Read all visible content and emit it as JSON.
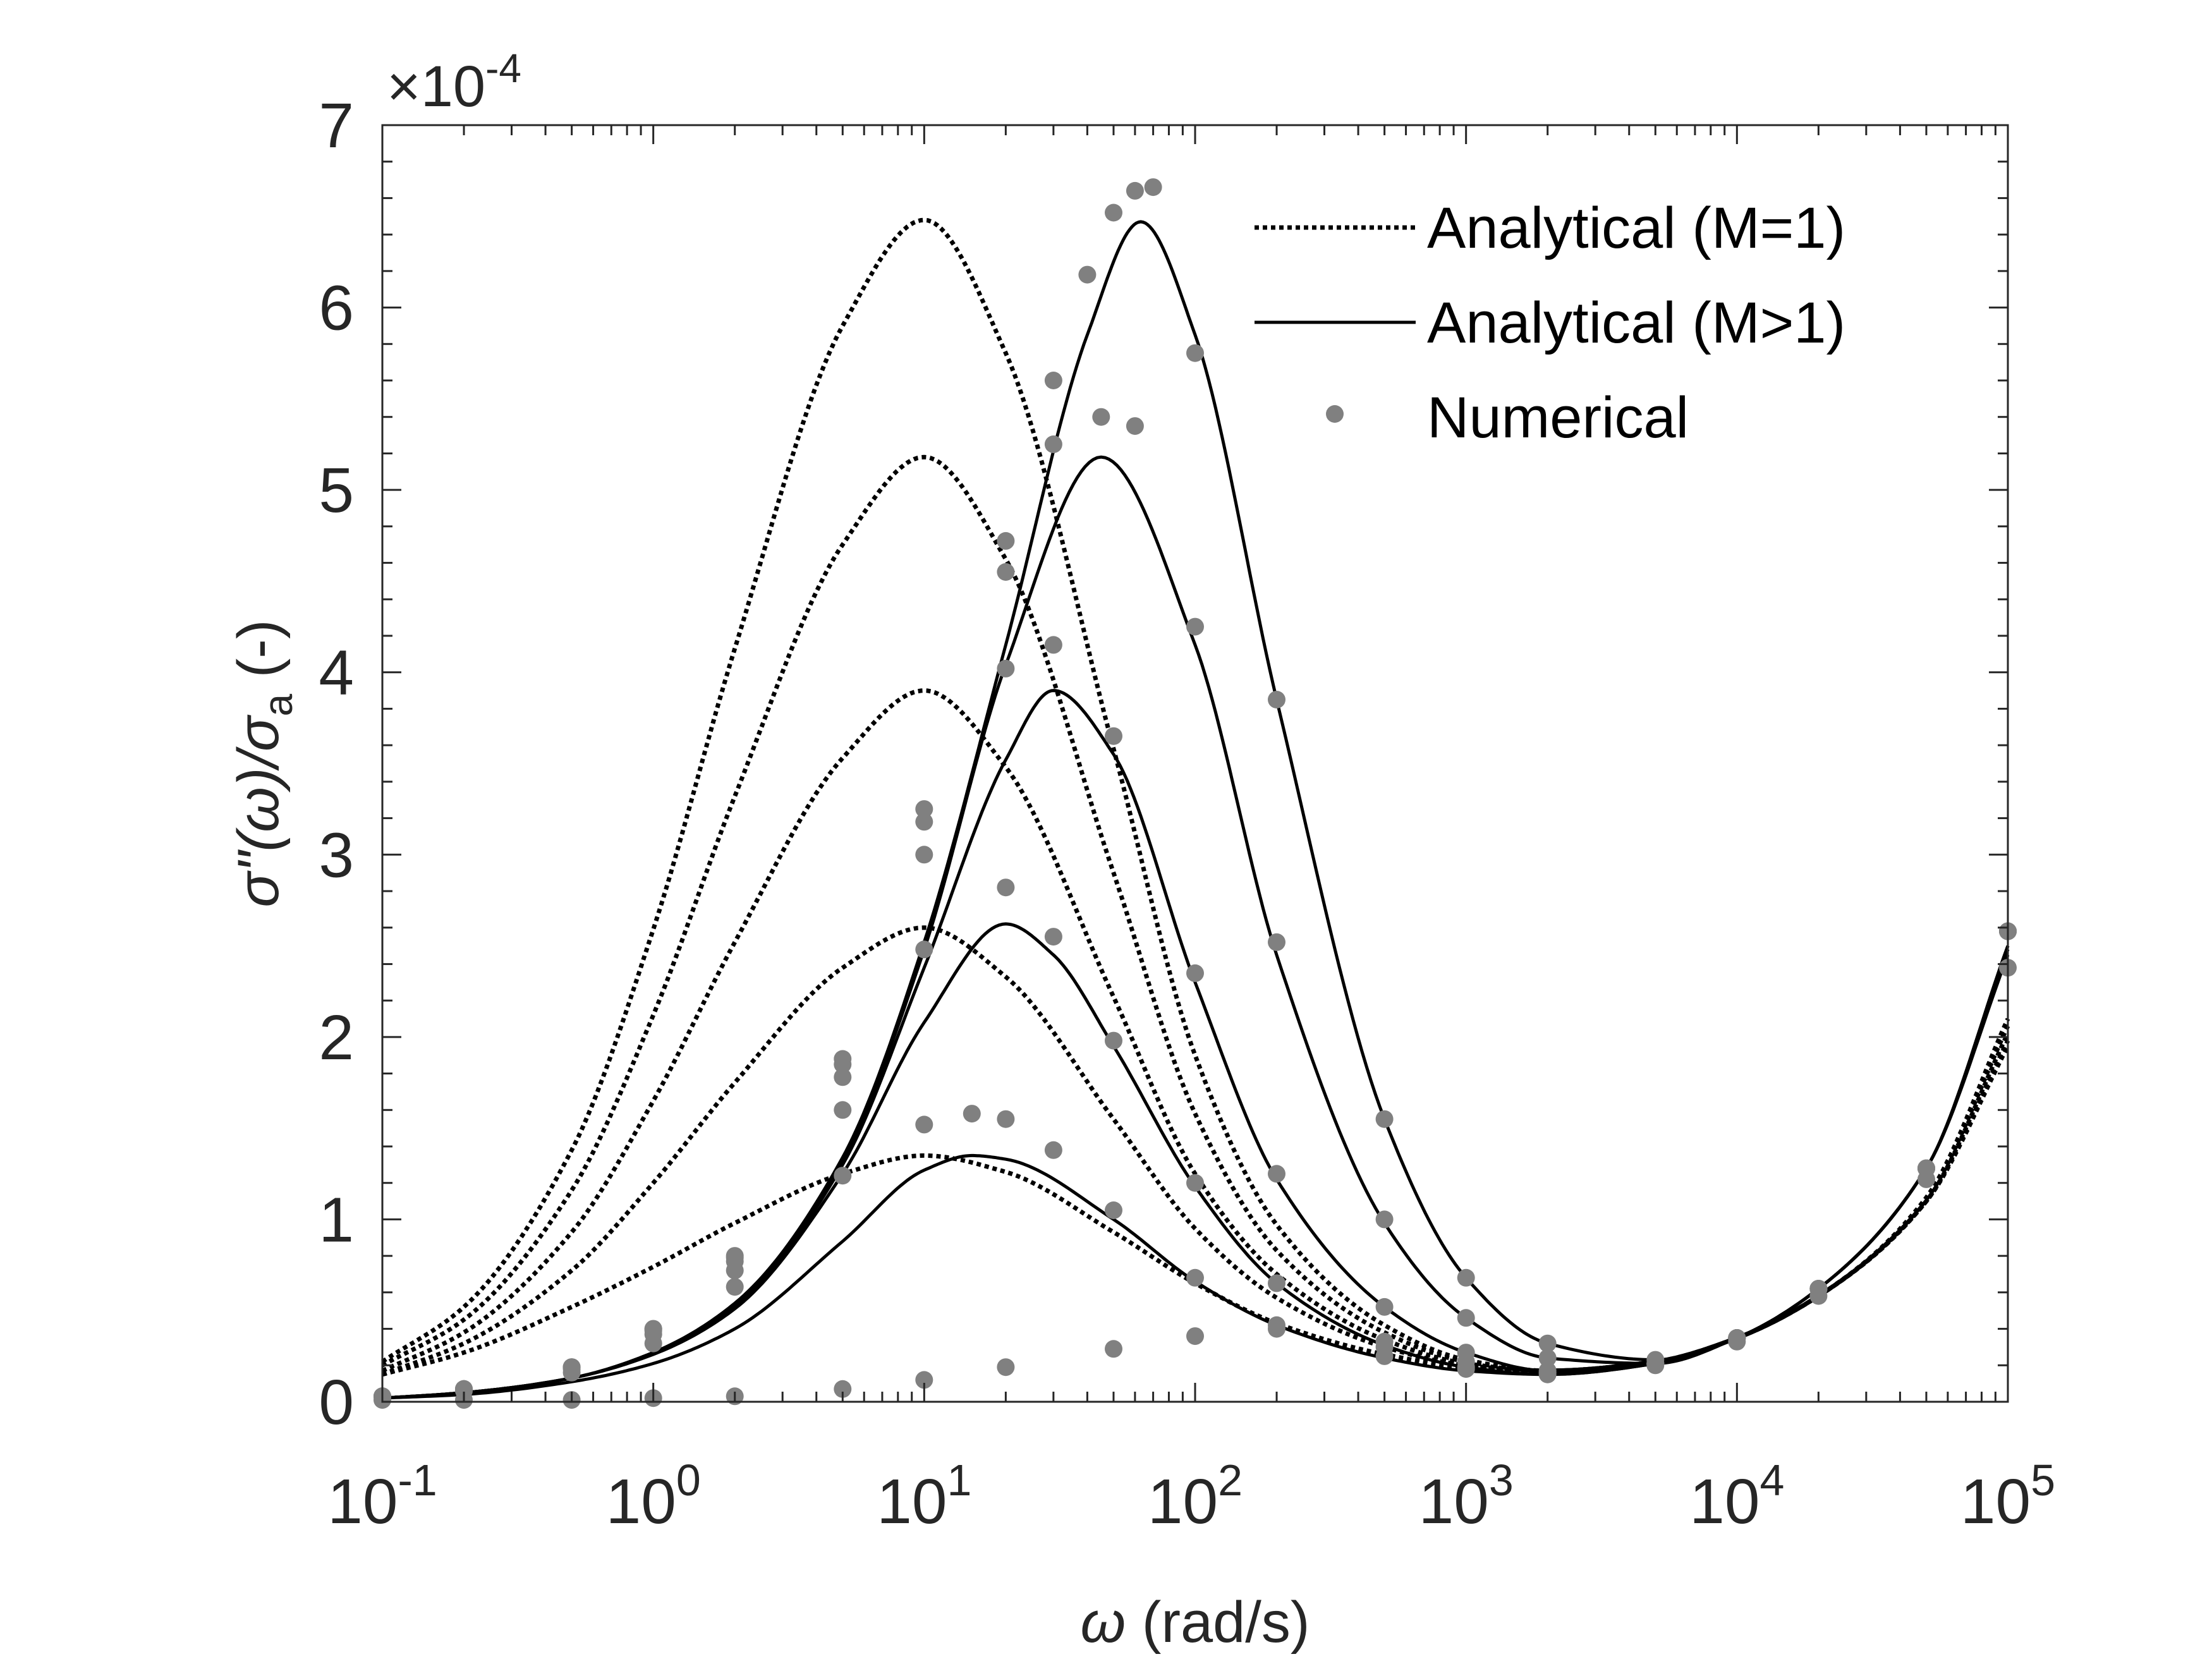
{
  "chart_data": {
    "type": "line",
    "xlabel_symbol": "ω",
    "xlabel_unit": "(rad/s)",
    "ylabel_main": "σ\"(ω)/σ",
    "ylabel_sub": "a",
    "ylabel_unit": "(-)",
    "x_scale": "log",
    "xlim": [
      0.1,
      100000
    ],
    "ylim": [
      0,
      0.0007
    ],
    "y_exponent_prefix": "×10",
    "y_exponent_power": "-4",
    "y_multiplier": 0.0001,
    "x_ticks": [
      {
        "base": "10",
        "exp": "-1",
        "value": 0.1
      },
      {
        "base": "10",
        "exp": "0",
        "value": 1
      },
      {
        "base": "10",
        "exp": "1",
        "value": 10
      },
      {
        "base": "10",
        "exp": "2",
        "value": 100
      },
      {
        "base": "10",
        "exp": "3",
        "value": 1000
      },
      {
        "base": "10",
        "exp": "4",
        "value": 10000
      },
      {
        "base": "10",
        "exp": "5",
        "value": 100000
      }
    ],
    "y_ticks": [
      {
        "label": "0",
        "value": 0
      },
      {
        "label": "1",
        "value": 0.0001
      },
      {
        "label": "2",
        "value": 0.0002
      },
      {
        "label": "3",
        "value": 0.0003
      },
      {
        "label": "4",
        "value": 0.0004
      },
      {
        "label": "5",
        "value": 0.0005
      },
      {
        "label": "6",
        "value": 0.0006
      },
      {
        "label": "7",
        "value": 0.0007
      }
    ],
    "grid": false,
    "box": true,
    "legend_position": "top-right",
    "legend": [
      {
        "label": "Analytical (M=1)",
        "style": "dotted",
        "color": "#000000"
      },
      {
        "label": "Analytical (M>1)",
        "style": "solid",
        "color": "#000000"
      },
      {
        "label": "Numerical",
        "style": "markers",
        "color": "#808080"
      }
    ],
    "series": [
      {
        "style": "dotted",
        "x": [
          0.1,
          0.2,
          0.5,
          1,
          2,
          5,
          10,
          20,
          50,
          100,
          200,
          500,
          1000,
          2000,
          5000,
          10000,
          20000,
          50000,
          100000
        ],
        "y": [
          1.5e-05,
          2.7e-05,
          5.2e-05,
          7.4e-05,
          9.8e-05,
          0.000125,
          0.000135,
          0.000126,
          9.3e-05,
          6.5e-05,
          4.3e-05,
          2.6e-05,
          1.9e-05,
          1.7e-05,
          2.2e-05,
          3.5e-05,
          5.8e-05,
          0.00011,
          0.000195
        ]
      },
      {
        "style": "dotted",
        "x": [
          0.1,
          0.2,
          0.5,
          1,
          2,
          5,
          10,
          20,
          50,
          100,
          200,
          500,
          1000,
          2000,
          5000,
          10000,
          20000,
          50000,
          100000
        ],
        "y": [
          1.5e-05,
          3.2e-05,
          7.2e-05,
          0.00012,
          0.000175,
          0.000238,
          0.00026,
          0.000233,
          0.000155,
          9.5e-05,
          5.7e-05,
          3e-05,
          2e-05,
          1.7e-05,
          2.2e-05,
          3.5e-05,
          5.8e-05,
          0.00011,
          0.000198
        ]
      },
      {
        "style": "dotted",
        "x": [
          0.1,
          0.2,
          0.5,
          1,
          2,
          5,
          10,
          20,
          50,
          100,
          200,
          500,
          1000,
          2000,
          5000,
          10000,
          20000,
          50000,
          100000
        ],
        "y": [
          1.7e-05,
          3.8e-05,
          9.3e-05,
          0.000165,
          0.000252,
          0.000353,
          0.00039,
          0.000348,
          0.000222,
          0.000125,
          7e-05,
          3.4e-05,
          2.1e-05,
          1.7e-05,
          2.2e-05,
          3.5e-05,
          5.8e-05,
          0.00011,
          0.000202
        ]
      },
      {
        "style": "dotted",
        "x": [
          0.1,
          0.2,
          0.5,
          1,
          2,
          5,
          10,
          20,
          50,
          100,
          200,
          500,
          1000,
          2000,
          5000,
          10000,
          20000,
          50000,
          100000
        ],
        "y": [
          2e-05,
          4.5e-05,
          0.000116,
          0.000212,
          0.000332,
          0.00047,
          0.000518,
          0.000462,
          0.00029,
          0.000158,
          8.3e-05,
          3.8e-05,
          2.2e-05,
          1.7e-05,
          2.2e-05,
          3.5e-05,
          5.8e-05,
          0.000111,
          0.000206
        ]
      },
      {
        "style": "dotted",
        "x": [
          0.1,
          0.2,
          0.5,
          1,
          2,
          5,
          10,
          20,
          50,
          100,
          200,
          500,
          1000,
          2000,
          5000,
          10000,
          20000,
          50000,
          100000
        ],
        "y": [
          2.2e-05,
          5.2e-05,
          0.000138,
          0.000259,
          0.000413,
          0.00059,
          0.000648,
          0.000575,
          0.000358,
          0.00019,
          9.7e-05,
          4.2e-05,
          2.3e-05,
          1.7e-05,
          2.2e-05,
          3.5e-05,
          5.8e-05,
          0.000112,
          0.00021
        ]
      },
      {
        "style": "solid",
        "x": [
          0.1,
          0.2,
          0.5,
          1,
          2,
          5,
          10,
          15,
          20,
          50,
          100,
          200,
          500,
          1000,
          2000,
          5000,
          10000,
          20000,
          50000,
          100000
        ],
        "y": [
          2e-06,
          4e-06,
          1.1e-05,
          2.1e-05,
          4e-05,
          8.8e-05,
          0.000127,
          0.000135,
          0.000133,
          0.0001,
          6.6e-05,
          4.2e-05,
          2.4e-05,
          1.7e-05,
          1.5e-05,
          2.1e-05,
          3.5e-05,
          6.2e-05,
          0.000128,
          0.000245
        ]
      },
      {
        "style": "solid",
        "x": [
          0.1,
          0.2,
          0.5,
          1,
          2,
          5,
          10,
          20,
          30,
          50,
          100,
          200,
          500,
          1000,
          2000,
          5000,
          10000,
          20000,
          50000,
          100000
        ],
        "y": [
          2e-06,
          5e-06,
          1.3e-05,
          2.6e-05,
          5.1e-05,
          0.000125,
          0.000208,
          0.000262,
          0.000245,
          0.000195,
          0.000118,
          6.5e-05,
          3.1e-05,
          1.9e-05,
          1.5e-05,
          2.1e-05,
          3.5e-05,
          6.2e-05,
          0.000128,
          0.000248
        ]
      },
      {
        "style": "solid",
        "x": [
          0.1,
          0.2,
          0.5,
          1,
          2,
          5,
          10,
          20,
          30,
          50,
          100,
          200,
          500,
          1000,
          2000,
          5000,
          10000,
          20000,
          50000,
          100000
        ],
        "y": [
          2e-06,
          5e-06,
          1.3e-05,
          2.7e-05,
          5.3e-05,
          0.00013,
          0.000238,
          0.000352,
          0.00039,
          0.000355,
          0.00023,
          0.000122,
          5.2e-05,
          2.7e-05,
          1.7e-05,
          2.1e-05,
          3.5e-05,
          6.2e-05,
          0.000128,
          0.000248
        ]
      },
      {
        "style": "solid",
        "x": [
          0.1,
          0.2,
          0.5,
          1,
          2,
          5,
          10,
          20,
          45,
          100,
          200,
          500,
          1000,
          2000,
          5000,
          10000,
          20000,
          50000,
          100000
        ],
        "y": [
          2e-06,
          5e-06,
          1.3e-05,
          2.7e-05,
          5.4e-05,
          0.000133,
          0.000248,
          0.000404,
          0.000518,
          0.000415,
          0.000245,
          9.8e-05,
          4.6e-05,
          2.4e-05,
          2.1e-05,
          3.5e-05,
          6.2e-05,
          0.000128,
          0.00025
        ]
      },
      {
        "style": "solid",
        "x": [
          0.1,
          0.2,
          0.5,
          1,
          2,
          5,
          10,
          20,
          40,
          63,
          100,
          200,
          500,
          1000,
          2000,
          5000,
          10000,
          20000,
          50000,
          100000
        ],
        "y": [
          2e-06,
          5e-06,
          1.3e-05,
          2.7e-05,
          5.4e-05,
          0.000134,
          0.000252,
          0.000415,
          0.000585,
          0.000647,
          0.000585,
          0.000385,
          0.000155,
          6.8e-05,
          3.2e-05,
          2.3e-05,
          3.5e-05,
          6.2e-05,
          0.000128,
          0.00025
        ]
      },
      {
        "style": "markers",
        "x": [
          0.1,
          0.2,
          0.5,
          1,
          2,
          5,
          10,
          20,
          50,
          100,
          200,
          500,
          1000,
          2000,
          5000,
          10000,
          20000,
          50000,
          100000
        ],
        "y": [
          1e-06,
          1e-06,
          1e-06,
          2e-06,
          3e-06,
          7e-06,
          1.2e-05,
          1.9e-05,
          2.9e-05,
          3.6e-05,
          4e-05,
          3.3e-05,
          2.2e-05,
          1.6e-05,
          2e-05,
          3.3e-05,
          5.8e-05,
          0.000122,
          0.000238
        ]
      },
      {
        "style": "markers",
        "x": [
          0.1,
          0.2,
          0.5,
          1,
          2,
          5,
          10,
          15,
          20,
          30,
          50,
          100,
          200,
          500,
          1000,
          2000,
          5000,
          10000,
          20000,
          50000,
          100000
        ],
        "y": [
          3e-06,
          6e-06,
          1.6e-05,
          3.2e-05,
          6.3e-05,
          0.000124,
          0.000152,
          0.000158,
          0.000155,
          0.000138,
          0.000105,
          6.8e-05,
          4.2e-05,
          2.5e-05,
          1.8e-05,
          1.6e-05,
          2.1e-05,
          3.5e-05,
          6.2e-05,
          0.000128,
          0.000258
        ]
      },
      {
        "style": "markers",
        "x": [
          0.1,
          0.2,
          0.5,
          1,
          2,
          5,
          10,
          20,
          30,
          50,
          100,
          200,
          500,
          1000,
          2000,
          5000,
          10000,
          20000,
          50000,
          100000
        ],
        "y": [
          3e-06,
          7e-06,
          1.8e-05,
          3.7e-05,
          7.2e-05,
          0.00016,
          0.000248,
          0.000282,
          0.000255,
          0.000198,
          0.00012,
          6.5e-05,
          3e-05,
          1.9e-05,
          1.5e-05,
          2.1e-05,
          3.5e-05,
          6.2e-05,
          0.000128,
          0.000258
        ]
      },
      {
        "style": "markers",
        "x": [
          0.1,
          0.2,
          0.5,
          1,
          2,
          5,
          10,
          20,
          30,
          50,
          100,
          200,
          500,
          1000,
          2000,
          5000,
          10000,
          20000,
          50000,
          100000
        ],
        "y": [
          3e-06,
          7e-06,
          1.9e-05,
          3.9e-05,
          7.7e-05,
          0.000178,
          0.0003,
          0.000402,
          0.000415,
          0.000365,
          0.000235,
          0.000125,
          5.2e-05,
          2.7e-05,
          1.7e-05,
          2.1e-05,
          3.5e-05,
          6.2e-05,
          0.000128,
          0.000258
        ]
      },
      {
        "style": "markers",
        "x": [
          0.1,
          0.2,
          0.5,
          1,
          2,
          5,
          10,
          20,
          30,
          45,
          60,
          100,
          200,
          500,
          1000,
          2000,
          5000,
          10000,
          20000,
          50000,
          100000
        ],
        "y": [
          3e-06,
          7e-06,
          1.9e-05,
          4e-05,
          7.9e-05,
          0.000185,
          0.000318,
          0.000455,
          0.000525,
          0.00054,
          0.000535,
          0.000425,
          0.000252,
          0.0001,
          4.6e-05,
          2.4e-05,
          2.1e-05,
          3.5e-05,
          6.2e-05,
          0.000128,
          0.000258
        ]
      },
      {
        "style": "markers",
        "x": [
          0.1,
          0.2,
          0.5,
          1,
          2,
          5,
          10,
          20,
          30,
          40,
          50,
          60,
          70,
          100,
          200,
          500,
          1000,
          2000,
          5000,
          10000,
          20000,
          50000,
          100000
        ],
        "y": [
          3e-06,
          7e-06,
          1.9e-05,
          4e-05,
          8e-05,
          0.000188,
          0.000325,
          0.000472,
          0.00056,
          0.000618,
          0.000652,
          0.000664,
          0.000666,
          0.000575,
          0.000385,
          0.000155,
          6.8e-05,
          3.2e-05,
          2.3e-05,
          3.5e-05,
          6.2e-05,
          0.000128,
          0.000258
        ]
      }
    ]
  }
}
